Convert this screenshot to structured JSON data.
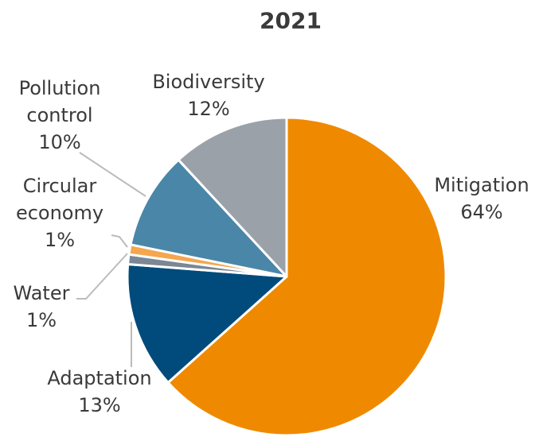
{
  "chart_data": {
    "type": "pie",
    "title": "2021",
    "categories": [
      "Mitigation",
      "Adaptation",
      "Water",
      "Circular economy",
      "Pollution control",
      "Biodiversity"
    ],
    "values": [
      64,
      13,
      1,
      1,
      10,
      12
    ],
    "value_labels": [
      "64%",
      "13%",
      "1%",
      "1%",
      "10%",
      "12%"
    ],
    "colors": [
      "#ef8a00",
      "#004b7c",
      "#7b8794",
      "#f5a64e",
      "#4a86a8",
      "#9ba1a9"
    ]
  }
}
